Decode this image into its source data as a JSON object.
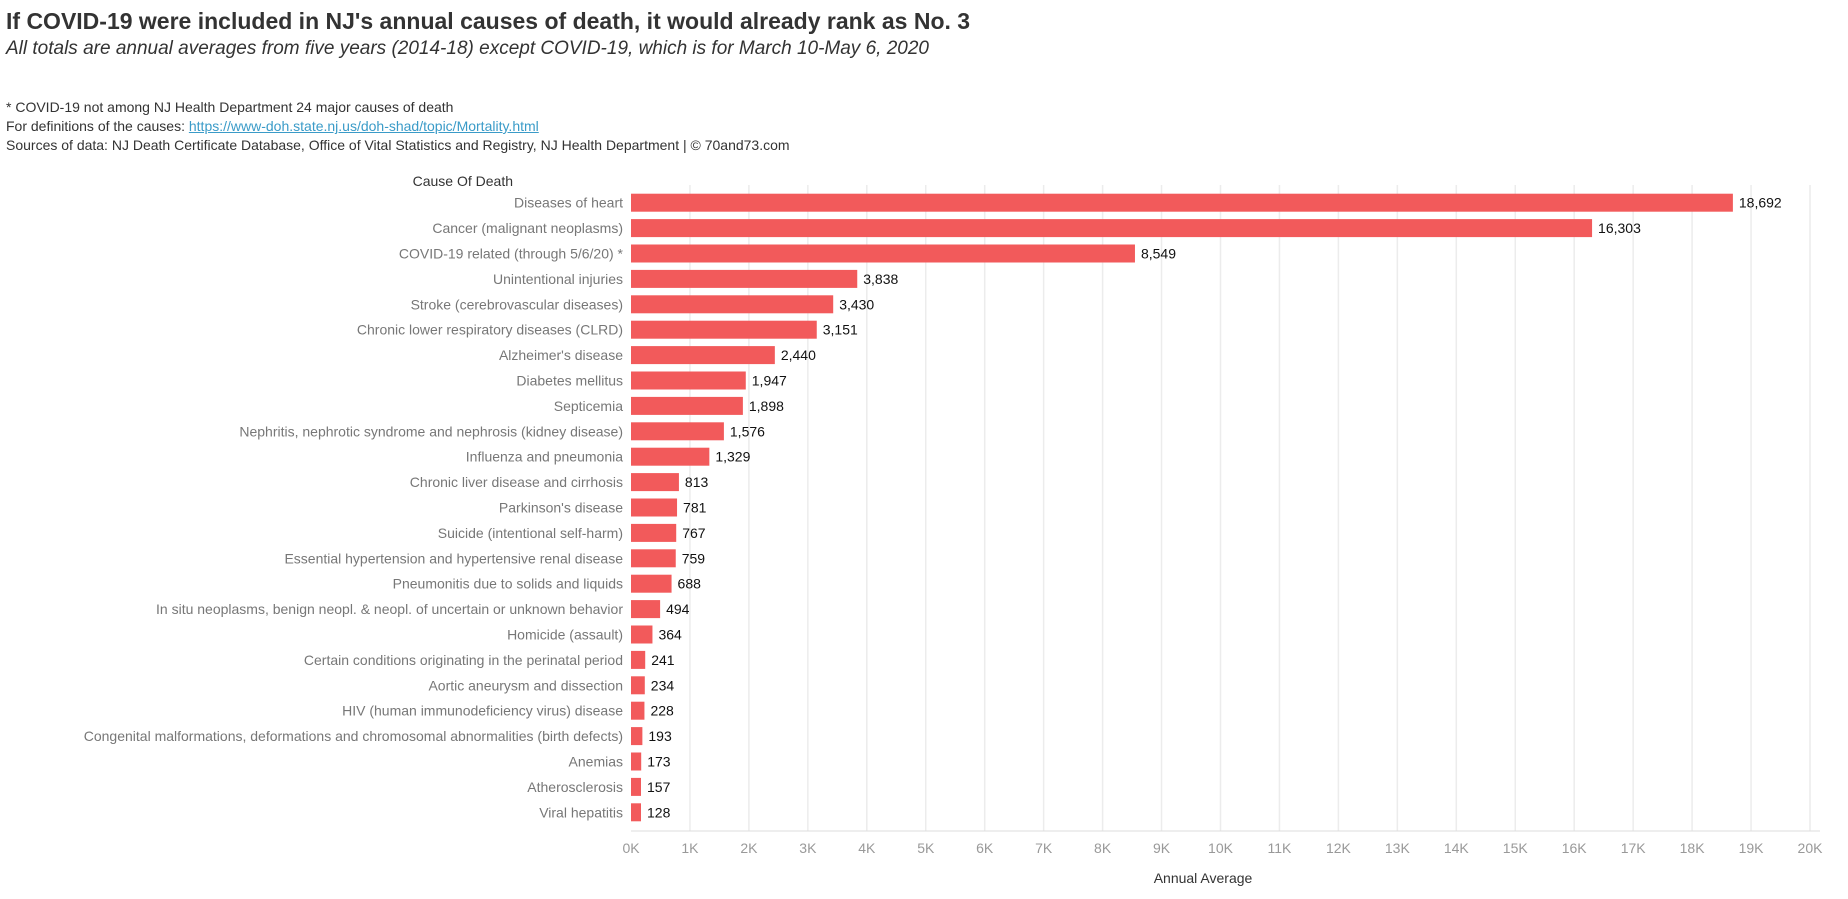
{
  "title": "If COVID-19 were included in NJ's annual causes of death, it would already rank as No. 3",
  "subtitle": "All totals are annual averages from five years (2014-18) except COVID-19, which is for March 10-May 6, 2020",
  "notes": {
    "asterisk": "* COVID-19 not among NJ Health Department 24 major causes of death",
    "definitions_prefix": "For definitions of the causes: ",
    "definitions_link": "https://www-doh.state.nj.us/doh-shad/topic/Mortality.html",
    "sources": "Sources of data: NJ Death Certificate Database, Office of Vital Statistics and Registry, NJ Health Department | © 70and73.com"
  },
  "chart_data": {
    "type": "bar",
    "orientation": "horizontal",
    "ylabel": "Cause Of Death",
    "xlabel": "Annual Average",
    "xlim": [
      0,
      20000
    ],
    "grid": true,
    "bar_color": "#F25A5B",
    "xticks": [
      "0K",
      "1K",
      "2K",
      "3K",
      "4K",
      "5K",
      "6K",
      "7K",
      "8K",
      "9K",
      "10K",
      "11K",
      "12K",
      "13K",
      "14K",
      "15K",
      "16K",
      "17K",
      "18K",
      "19K",
      "20K"
    ],
    "categories": [
      "Diseases of heart",
      "Cancer (malignant neoplasms)",
      "COVID-19 related (through 5/6/20) *",
      "Unintentional injuries",
      "Stroke (cerebrovascular diseases)",
      "Chronic lower respiratory diseases (CLRD)",
      "Alzheimer's disease",
      "Diabetes mellitus",
      "Septicemia",
      "Nephritis, nephrotic syndrome and nephrosis (kidney disease)",
      "Influenza and pneumonia",
      "Chronic liver disease and cirrhosis",
      "Parkinson's disease",
      "Suicide (intentional self-harm)",
      "Essential hypertension and hypertensive renal disease",
      "Pneumonitis due to solids and liquids",
      "In situ neoplasms, benign neopl. & neopl. of uncertain or unknown behavior",
      "Homicide (assault)",
      "Certain conditions originating in the perinatal period",
      "Aortic aneurysm and dissection",
      "HIV (human immunodeficiency virus) disease",
      "Congenital malformations, deformations and chromosomal abnormalities (birth defects)",
      "Anemias",
      "Atherosclerosis",
      "Viral hepatitis"
    ],
    "values": [
      18692,
      16303,
      8549,
      3838,
      3430,
      3151,
      2440,
      1947,
      1898,
      1576,
      1329,
      813,
      781,
      767,
      759,
      688,
      494,
      364,
      241,
      234,
      228,
      193,
      173,
      157,
      128
    ],
    "labels": [
      "18,692",
      "16,303",
      "8,549",
      "3,838",
      "3,430",
      "3,151",
      "2,440",
      "1,947",
      "1,898",
      "1,576",
      "1,329",
      "813",
      "781",
      "767",
      "759",
      "688",
      "494",
      "364",
      "241",
      "234",
      "228",
      "193",
      "173",
      "157",
      "128"
    ]
  }
}
